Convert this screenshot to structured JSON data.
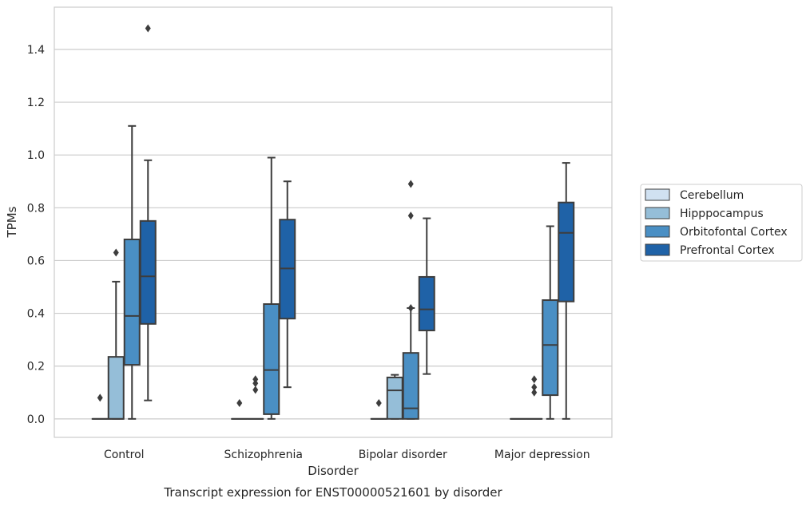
{
  "chart_data": {
    "type": "box",
    "caption": "Transcript expression for ENST00000521601 by disorder",
    "xlabel": "Disorder",
    "ylabel": "TPMs",
    "ylim": [
      -0.07,
      1.56
    ],
    "yticks": [
      0.0,
      0.2,
      0.4,
      0.6,
      0.8,
      1.0,
      1.2,
      1.4
    ],
    "ytick_labels": [
      "0.0",
      "0.2",
      "0.4",
      "0.6",
      "0.8",
      "1.0",
      "1.2",
      "1.4"
    ],
    "grid": "horizontal",
    "legend_position": "right",
    "categories": [
      "Control",
      "Schizophrenia",
      "Bipolar disorder",
      "Major depression"
    ],
    "series": [
      {
        "name": "Cerebellum",
        "color": "#d0e1f1",
        "boxes": [
          {
            "q1": 0,
            "median": 0,
            "q3": 0,
            "whisker_low": 0,
            "whisker_high": 0,
            "outliers": [
              0.08
            ]
          },
          {
            "q1": 0,
            "median": 0,
            "q3": 0,
            "whisker_low": 0,
            "whisker_high": 0,
            "outliers": [
              0.06
            ]
          },
          {
            "q1": 0,
            "median": 0,
            "q3": 0,
            "whisker_low": 0,
            "whisker_high": 0,
            "outliers": [
              0.06
            ]
          },
          {
            "q1": 0,
            "median": 0,
            "q3": 0,
            "whisker_low": 0,
            "whisker_high": 0,
            "outliers": []
          }
        ]
      },
      {
        "name": "Hipppocampus",
        "color": "#95bed8",
        "boxes": [
          {
            "q1": 0,
            "median": 0,
            "q3": 0.235,
            "whisker_low": 0,
            "whisker_high": 0.52,
            "outliers": [
              0.63
            ]
          },
          {
            "q1": 0,
            "median": 0,
            "q3": 0,
            "whisker_low": 0,
            "whisker_high": 0,
            "outliers": [
              0.11,
              0.135,
              0.15
            ]
          },
          {
            "q1": 0,
            "median": 0.108,
            "q3": 0.157,
            "whisker_low": 0,
            "whisker_high": 0.167,
            "outliers": []
          },
          {
            "q1": 0,
            "median": 0,
            "q3": 0,
            "whisker_low": 0,
            "whisker_high": 0,
            "outliers": [
              0.1,
              0.12,
              0.15
            ]
          }
        ]
      },
      {
        "name": "Orbitofontal Cortex",
        "color": "#4a8fc4",
        "boxes": [
          {
            "q1": 0.205,
            "median": 0.39,
            "q3": 0.68,
            "whisker_low": 0,
            "whisker_high": 1.11,
            "outliers": []
          },
          {
            "q1": 0.018,
            "median": 0.185,
            "q3": 0.435,
            "whisker_low": 0,
            "whisker_high": 0.99,
            "outliers": []
          },
          {
            "q1": 0,
            "median": 0.04,
            "q3": 0.25,
            "whisker_low": 0,
            "whisker_high": 0.42,
            "outliers": [
              0.42,
              0.77,
              0.89
            ]
          },
          {
            "q1": 0.09,
            "median": 0.28,
            "q3": 0.45,
            "whisker_low": 0,
            "whisker_high": 0.73,
            "outliers": []
          }
        ]
      },
      {
        "name": "Prefrontal Cortex",
        "color": "#1f62a7",
        "boxes": [
          {
            "q1": 0.36,
            "median": 0.54,
            "q3": 0.75,
            "whisker_low": 0.07,
            "whisker_high": 0.98,
            "outliers": [
              1.48
            ]
          },
          {
            "q1": 0.38,
            "median": 0.57,
            "q3": 0.755,
            "whisker_low": 0.12,
            "whisker_high": 0.9,
            "outliers": []
          },
          {
            "q1": 0.335,
            "median": 0.415,
            "q3": 0.538,
            "whisker_low": 0.17,
            "whisker_high": 0.76,
            "outliers": []
          },
          {
            "q1": 0.445,
            "median": 0.705,
            "q3": 0.82,
            "whisker_low": 0,
            "whisker_high": 0.97,
            "outliers": []
          }
        ]
      }
    ]
  }
}
